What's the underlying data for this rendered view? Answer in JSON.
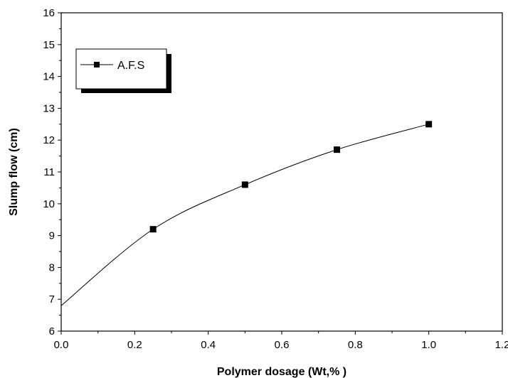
{
  "chart_data": {
    "type": "line",
    "xlabel": "Polymer dosage (Wt,% )",
    "ylabel": "Slump flow (cm)",
    "xlim": [
      0.0,
      1.2
    ],
    "ylim": [
      6,
      16
    ],
    "x_ticks": [
      "0.0",
      "0.2",
      "0.4",
      "0.6",
      "0.8",
      "1.0",
      "1.2"
    ],
    "y_ticks": [
      "6",
      "7",
      "8",
      "9",
      "10",
      "11",
      "12",
      "13",
      "14",
      "15",
      "16"
    ],
    "grid": false,
    "legend_position": "top-left",
    "series": [
      {
        "name": "A.F.S",
        "color": "#000000",
        "marker": "square",
        "x": [
          0.0,
          0.25,
          0.5,
          0.75,
          1.0
        ],
        "y": [
          6.8,
          9.2,
          10.6,
          11.7,
          12.5
        ]
      }
    ]
  }
}
